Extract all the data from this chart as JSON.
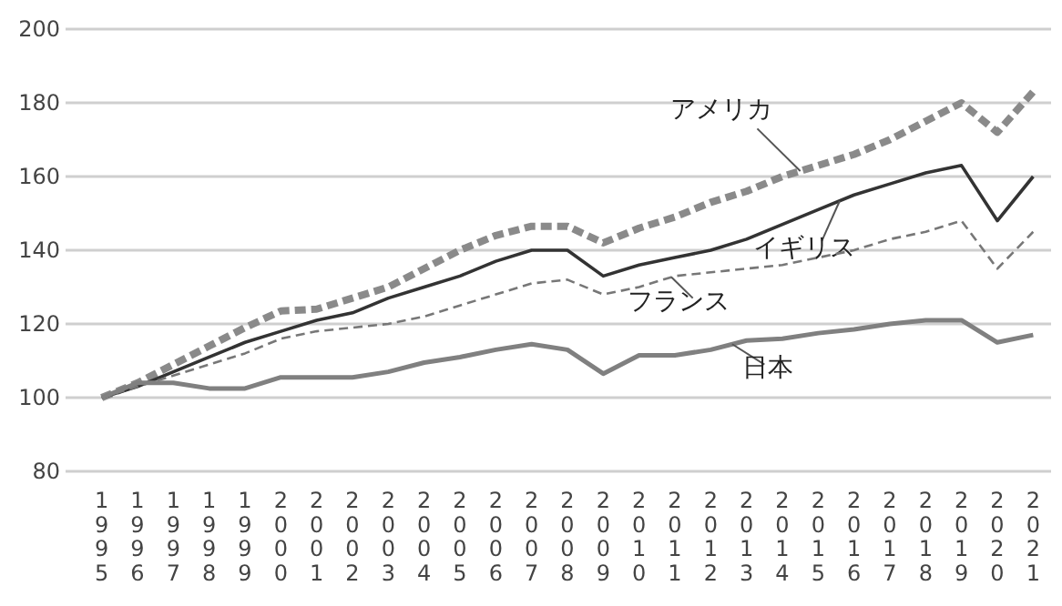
{
  "chart_data": {
    "type": "line",
    "categories": [
      "1995",
      "1996",
      "1997",
      "1998",
      "1999",
      "2000",
      "2001",
      "2002",
      "2003",
      "2004",
      "2005",
      "2006",
      "2007",
      "2008",
      "2009",
      "2010",
      "2011",
      "2012",
      "2013",
      "2014",
      "2015",
      "2016",
      "2017",
      "2018",
      "2019",
      "2020",
      "2021"
    ],
    "ylim": [
      80,
      200
    ],
    "yticks": [
      80,
      100,
      120,
      140,
      160,
      180,
      200
    ],
    "grid": "y",
    "legend": false,
    "marker": "none",
    "series": [
      {
        "name": "アメリカ",
        "color": "#8a8a8a",
        "line_style": "dashed",
        "values": [
          100,
          104,
          109,
          114,
          119,
          123.5,
          124,
          127,
          130,
          135,
          140,
          144,
          146.5,
          146.5,
          142,
          146,
          149,
          153,
          156,
          160,
          163,
          166,
          170,
          175,
          180,
          172,
          183
        ]
      },
      {
        "name": "イギリス",
        "color": "#333333",
        "line_style": "solid",
        "values": [
          100,
          103,
          107,
          111,
          115,
          118,
          121,
          123,
          127,
          130,
          133,
          137,
          140,
          140,
          133,
          136,
          138,
          140,
          143,
          147,
          151,
          155,
          158,
          161,
          163,
          148,
          160
        ]
      },
      {
        "name": "フランス",
        "color": "#777777",
        "line_style": "dashed",
        "values": [
          100,
          103,
          106,
          109,
          112,
          116,
          118,
          119,
          120,
          122,
          125,
          128,
          131,
          132,
          128,
          130,
          133,
          134,
          135,
          136,
          138,
          140,
          143,
          145,
          148,
          135,
          145
        ]
      },
      {
        "name": "日本",
        "color": "#808080",
        "line_style": "solid",
        "values": [
          100,
          104,
          104,
          102.5,
          102.5,
          105.5,
          105.5,
          105.5,
          107,
          109.5,
          111,
          113,
          114.5,
          113,
          106.5,
          111.5,
          111.5,
          113,
          115.5,
          116,
          117.5,
          118.5,
          120,
          121,
          121,
          115,
          117
        ]
      }
    ]
  }
}
